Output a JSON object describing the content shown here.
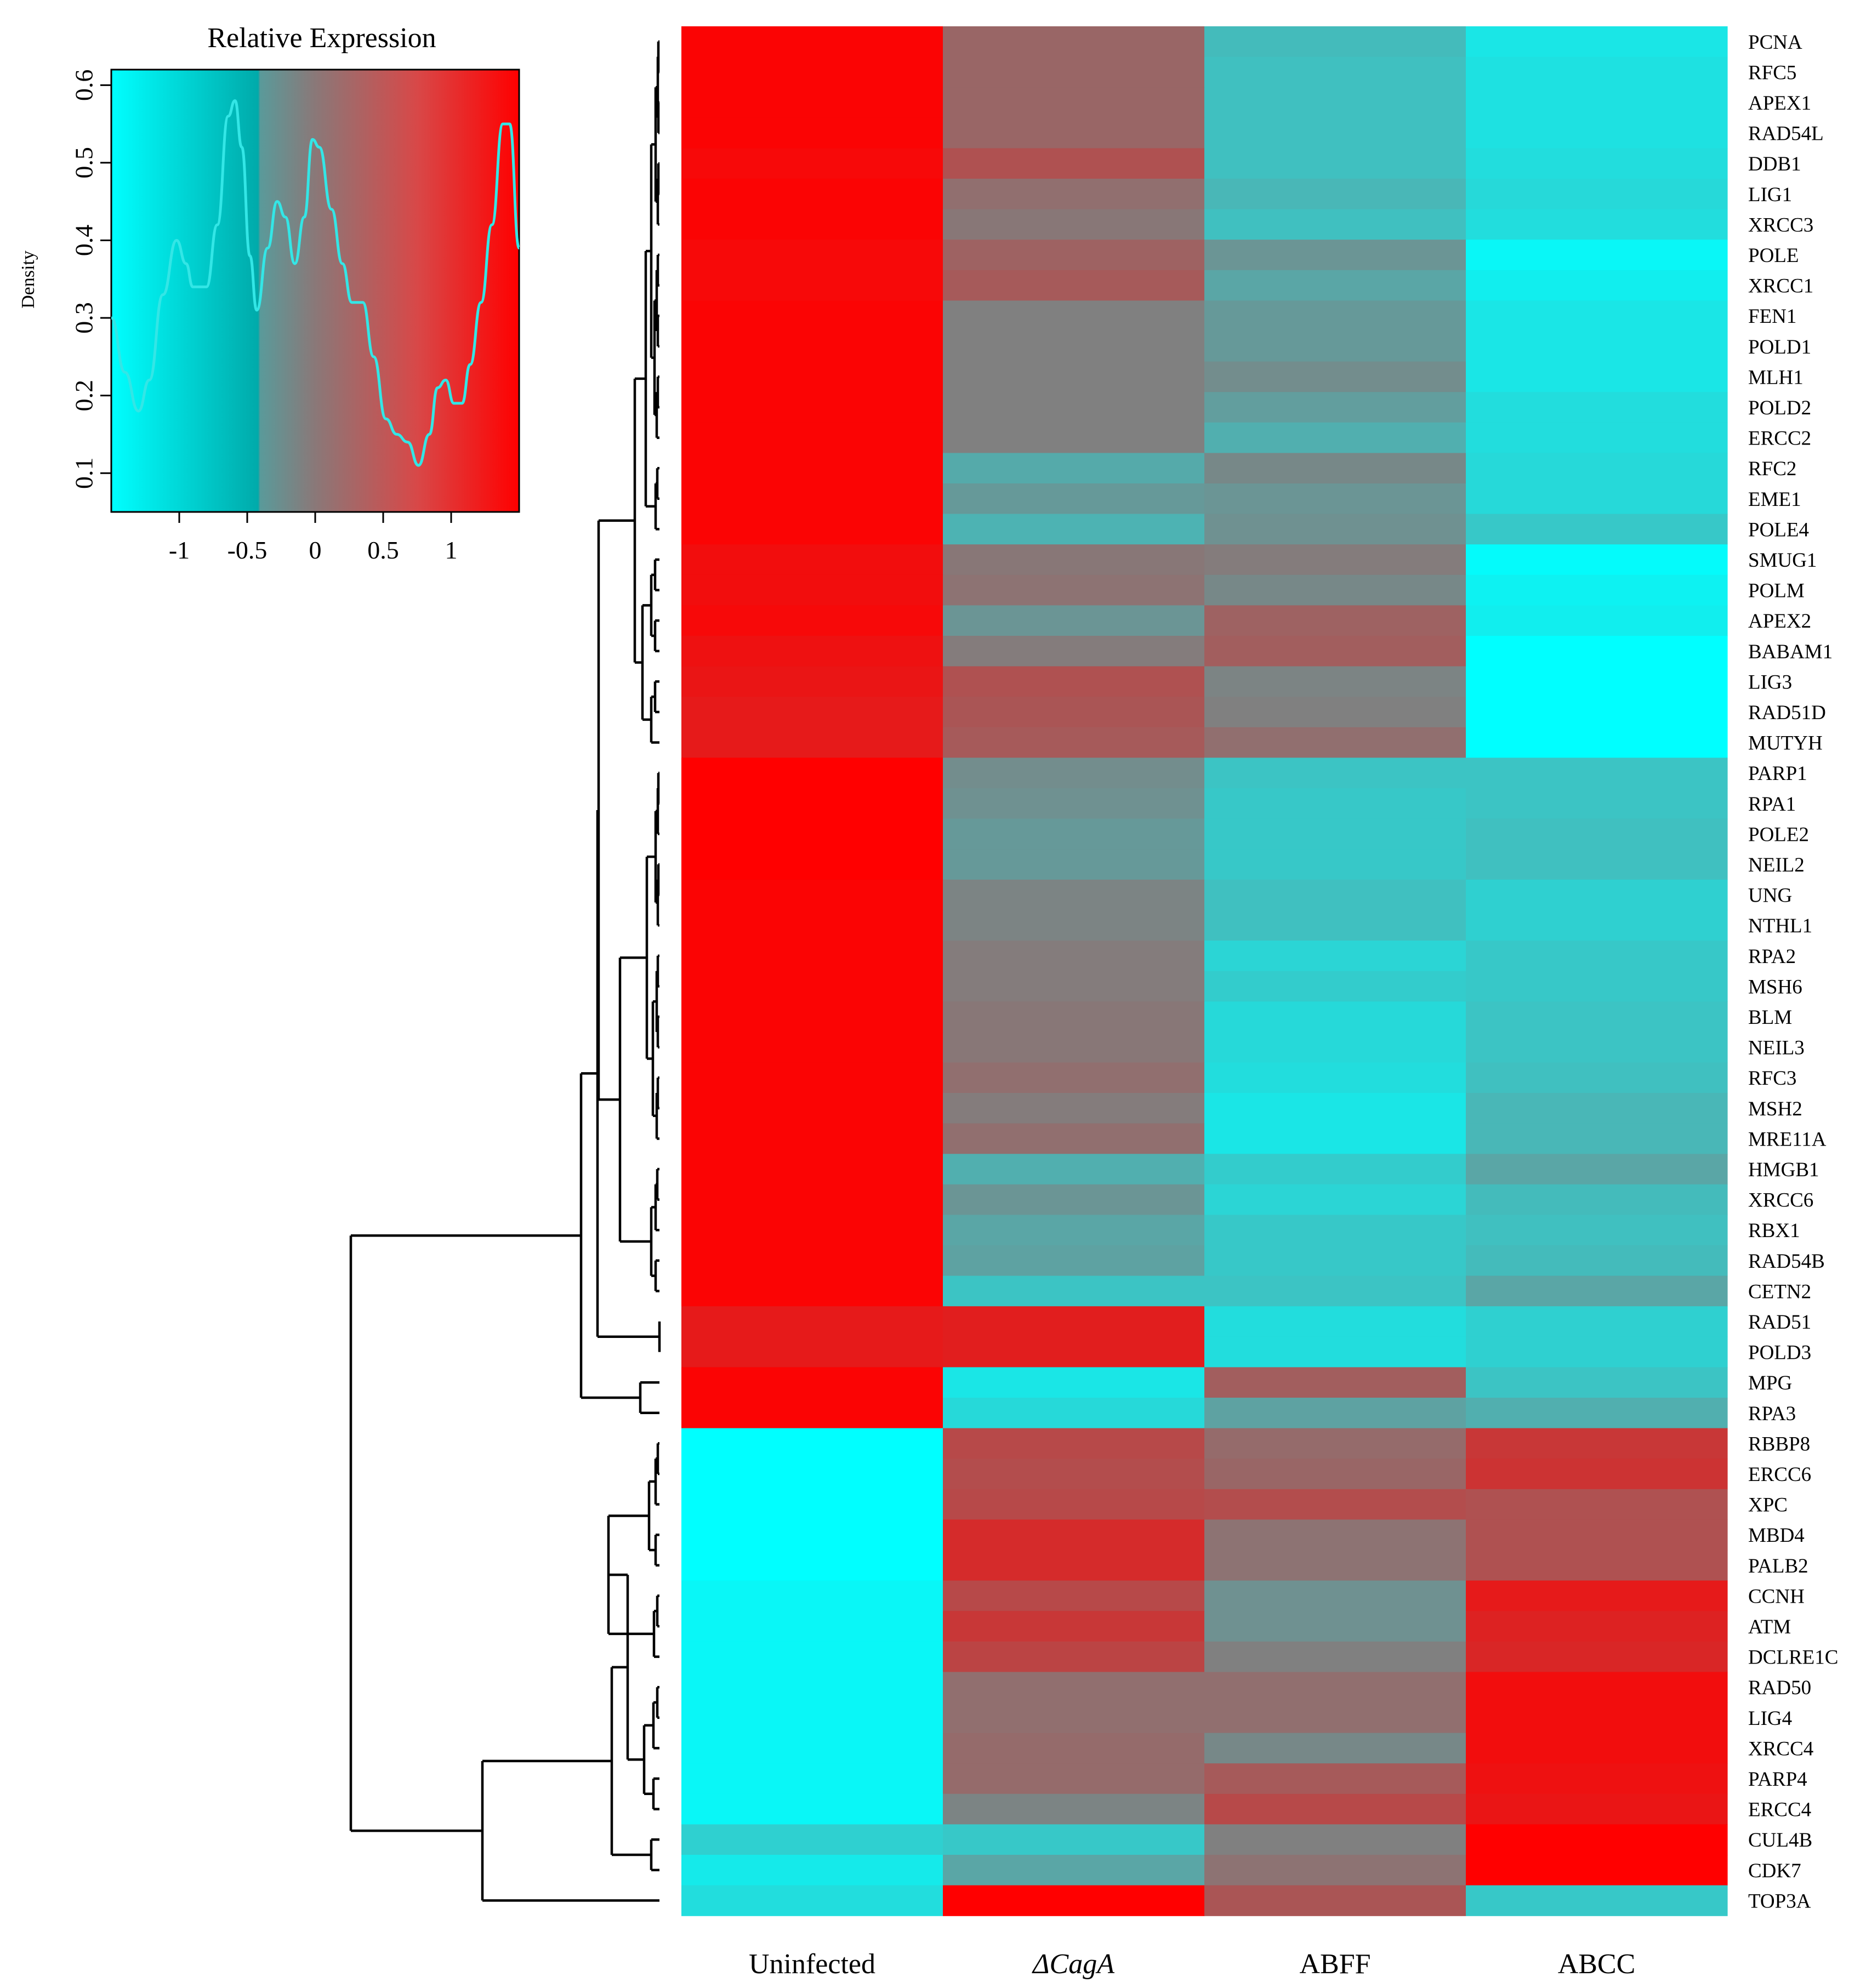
{
  "chart_data": {
    "type": "heatmap",
    "colors": {
      "low": "#00ffff",
      "mid": "#808080",
      "high": "#ff0000",
      "dendrogram": "#000000",
      "density_line": "#33e6e6"
    },
    "columns": [
      "Uninfected",
      "ΔCagA",
      "ABFF",
      "ABCC"
    ],
    "rows": [
      "PCNA",
      "RFC5",
      "APEX1",
      "RAD54L",
      "DDB1",
      "LIG1",
      "XRCC3",
      "POLE",
      "XRCC1",
      "FEN1",
      "POLD1",
      "MLH1",
      "POLD2",
      "ERCC2",
      "RFC2",
      "EME1",
      "POLE4",
      "SMUG1",
      "POLM",
      "APEX2",
      "BABAM1",
      "LIG3",
      "RAD51D",
      "MUTYH",
      "PARP1",
      "RPA1",
      "POLE2",
      "NEIL2",
      "UNG",
      "NTHL1",
      "RPA2",
      "MSH6",
      "BLM",
      "NEIL3",
      "RFC3",
      "MSH2",
      "MRE11A",
      "HMGB1",
      "XRCC6",
      "RBX1",
      "RAD54B",
      "CETN2",
      "RAD51",
      "POLD3",
      "MPG",
      "RPA3",
      "RBBP8",
      "ERCC6",
      "XPC",
      "MBD4",
      "PALB2",
      "CCNH",
      "ATM",
      "DCLRE1C",
      "RAD50",
      "LIG4",
      "XRCC4",
      "PARP4",
      "ERCC4",
      "CUL4B",
      "CDK7",
      "TOP3A"
    ],
    "values": [
      [
        1.45,
        0.3,
        -0.7,
        -1.2
      ],
      [
        1.45,
        0.3,
        -0.75,
        -1.15
      ],
      [
        1.45,
        0.3,
        -0.75,
        -1.15
      ],
      [
        1.45,
        0.3,
        -0.75,
        -1.15
      ],
      [
        1.4,
        0.55,
        -0.75,
        -1.1
      ],
      [
        1.45,
        0.2,
        -0.65,
        -1.05
      ],
      [
        1.45,
        0.1,
        -0.75,
        -1.1
      ],
      [
        1.4,
        0.35,
        -0.25,
        -1.4
      ],
      [
        1.4,
        0.45,
        -0.45,
        -1.3
      ],
      [
        1.45,
        0.0,
        -0.3,
        -1.2
      ],
      [
        1.45,
        0.0,
        -0.3,
        -1.2
      ],
      [
        1.45,
        0.0,
        -0.15,
        -1.2
      ],
      [
        1.45,
        0.0,
        -0.35,
        -1.1
      ],
      [
        1.45,
        0.0,
        -0.55,
        -1.1
      ],
      [
        1.45,
        -0.5,
        -0.1,
        -1.05
      ],
      [
        1.45,
        -0.3,
        -0.25,
        -1.05
      ],
      [
        1.45,
        -0.6,
        -0.2,
        -0.85
      ],
      [
        1.35,
        0.1,
        0.05,
        -1.45
      ],
      [
        1.35,
        0.15,
        -0.1,
        -1.35
      ],
      [
        1.4,
        -0.25,
        0.35,
        -1.3
      ],
      [
        1.3,
        0.05,
        0.4,
        -1.5
      ],
      [
        1.25,
        0.55,
        -0.05,
        -1.5
      ],
      [
        1.2,
        0.5,
        0.0,
        -1.5
      ],
      [
        1.2,
        0.45,
        0.2,
        -1.5
      ],
      [
        1.5,
        -0.15,
        -0.8,
        -0.8
      ],
      [
        1.5,
        -0.2,
        -0.85,
        -0.8
      ],
      [
        1.5,
        -0.3,
        -0.85,
        -0.75
      ],
      [
        1.5,
        -0.3,
        -0.85,
        -0.75
      ],
      [
        1.45,
        -0.05,
        -0.75,
        -0.95
      ],
      [
        1.45,
        -0.05,
        -0.75,
        -0.95
      ],
      [
        1.45,
        0.05,
        -1.0,
        -0.85
      ],
      [
        1.45,
        0.05,
        -0.9,
        -0.85
      ],
      [
        1.45,
        0.1,
        -1.05,
        -0.8
      ],
      [
        1.45,
        0.1,
        -1.05,
        -0.8
      ],
      [
        1.45,
        0.2,
        -1.1,
        -0.75
      ],
      [
        1.45,
        0.05,
        -1.2,
        -0.65
      ],
      [
        1.45,
        0.2,
        -1.2,
        -0.65
      ],
      [
        1.45,
        -0.55,
        -0.9,
        -0.45
      ],
      [
        1.45,
        -0.25,
        -1.0,
        -0.7
      ],
      [
        1.45,
        -0.45,
        -0.85,
        -0.75
      ],
      [
        1.45,
        -0.4,
        -0.85,
        -0.7
      ],
      [
        1.45,
        -0.8,
        -0.8,
        -0.45
      ],
      [
        1.2,
        1.15,
        -1.1,
        -0.95
      ],
      [
        1.2,
        1.15,
        -1.1,
        -0.95
      ],
      [
        1.45,
        -1.2,
        0.4,
        -0.8
      ],
      [
        1.45,
        -1.05,
        -0.4,
        -0.55
      ],
      [
        -1.5,
        0.65,
        0.25,
        0.85
      ],
      [
        -1.5,
        0.6,
        0.3,
        0.9
      ],
      [
        -1.5,
        0.65,
        0.6,
        0.55
      ],
      [
        -1.5,
        1.0,
        0.15,
        0.55
      ],
      [
        -1.5,
        1.0,
        0.15,
        0.55
      ],
      [
        -1.4,
        0.65,
        -0.2,
        1.2
      ],
      [
        -1.4,
        0.85,
        -0.2,
        1.1
      ],
      [
        -1.4,
        0.7,
        0.0,
        1.05
      ],
      [
        -1.4,
        0.2,
        0.2,
        1.35
      ],
      [
        -1.4,
        0.2,
        0.2,
        1.35
      ],
      [
        -1.4,
        0.25,
        -0.1,
        1.35
      ],
      [
        -1.4,
        0.25,
        0.45,
        1.3
      ],
      [
        -1.4,
        -0.05,
        0.65,
        1.25
      ],
      [
        -0.95,
        -0.85,
        0.0,
        1.55
      ],
      [
        -1.25,
        -0.45,
        0.15,
        1.55
      ],
      [
        -1.1,
        1.55,
        0.5,
        -0.85
      ]
    ],
    "color_key": {
      "title": "Relative Expression",
      "ylabel": "Density",
      "xlim": [
        -1.5,
        1.5
      ],
      "ylim": [
        0.05,
        0.62
      ],
      "x_ticks": [
        -1,
        -0.5,
        0,
        0.5,
        1
      ],
      "x_tick_labels": [
        "-1",
        "-0.5",
        "0",
        "0.5",
        "1"
      ],
      "y_ticks": [
        0.1,
        0.2,
        0.3,
        0.4,
        0.5,
        0.6
      ],
      "y_tick_labels": [
        "0.1",
        "0.2",
        "0.3",
        "0.4",
        "0.5",
        "0.6"
      ],
      "density_curve": [
        [
          -1.5,
          0.3
        ],
        [
          -1.4,
          0.23
        ],
        [
          -1.3,
          0.18
        ],
        [
          -1.22,
          0.22
        ],
        [
          -1.12,
          0.33
        ],
        [
          -1.02,
          0.4
        ],
        [
          -0.95,
          0.37
        ],
        [
          -0.9,
          0.34
        ],
        [
          -0.8,
          0.34
        ],
        [
          -0.72,
          0.42
        ],
        [
          -0.64,
          0.56
        ],
        [
          -0.59,
          0.58
        ],
        [
          -0.54,
          0.52
        ],
        [
          -0.48,
          0.38
        ],
        [
          -0.43,
          0.31
        ],
        [
          -0.35,
          0.39
        ],
        [
          -0.28,
          0.45
        ],
        [
          -0.22,
          0.43
        ],
        [
          -0.15,
          0.37
        ],
        [
          -0.08,
          0.43
        ],
        [
          -0.02,
          0.53
        ],
        [
          0.03,
          0.52
        ],
        [
          0.12,
          0.44
        ],
        [
          0.2,
          0.37
        ],
        [
          0.27,
          0.32
        ],
        [
          0.35,
          0.32
        ],
        [
          0.43,
          0.25
        ],
        [
          0.52,
          0.17
        ],
        [
          0.6,
          0.15
        ],
        [
          0.68,
          0.14
        ],
        [
          0.76,
          0.11
        ],
        [
          0.84,
          0.15
        ],
        [
          0.9,
          0.21
        ],
        [
          0.96,
          0.22
        ],
        [
          1.02,
          0.19
        ],
        [
          1.08,
          0.19
        ],
        [
          1.14,
          0.24
        ],
        [
          1.22,
          0.32
        ],
        [
          1.3,
          0.42
        ],
        [
          1.38,
          0.55
        ],
        [
          1.43,
          0.55
        ],
        [
          1.5,
          0.39
        ]
      ]
    }
  }
}
